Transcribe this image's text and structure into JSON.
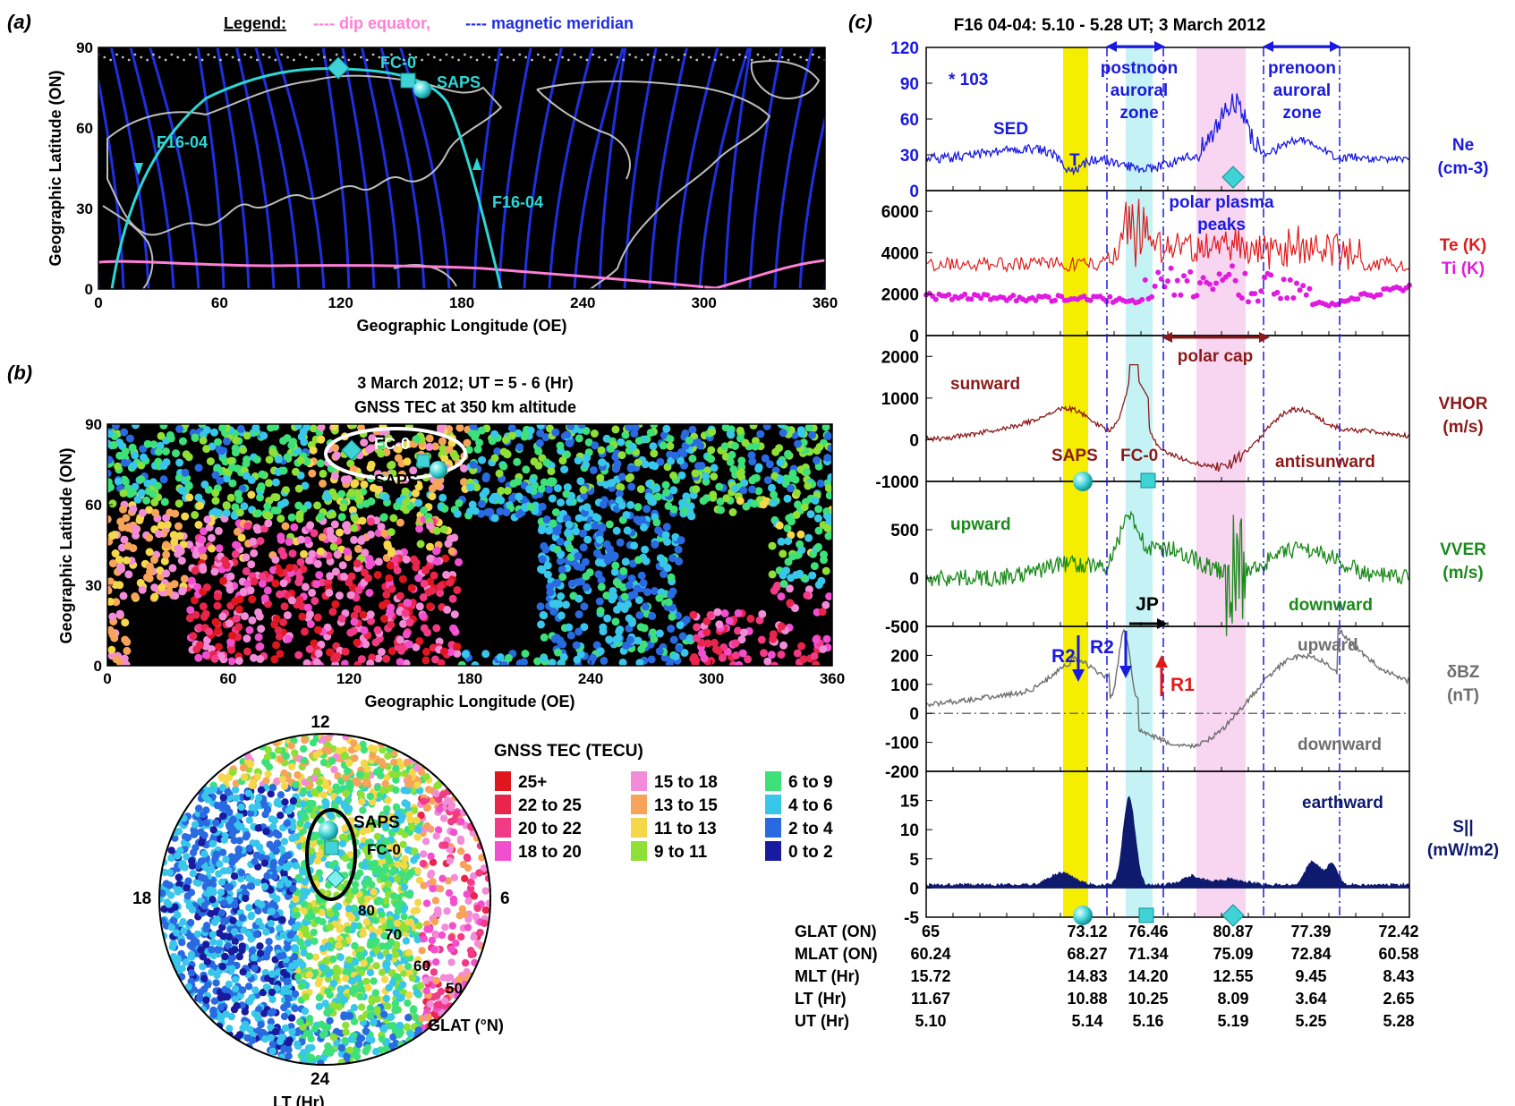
{
  "panel_a": {
    "letter": "(a)",
    "legend_title": "Legend:",
    "legend_dip": "---- dip equator,",
    "legend_meridian": "---- magnetic meridian",
    "xlabel": "Geographic Longitude (OE)",
    "ylabel": "Geographic Latitude (ON)",
    "xticks": [
      "0",
      "60",
      "120",
      "180",
      "240",
      "300",
      "360"
    ],
    "yticks": [
      "0",
      "30",
      "60",
      "90"
    ],
    "labels": {
      "fc0": "FC-0",
      "saps": "SAPS",
      "track1": "F16-04",
      "track2": "F16-04"
    },
    "colors": {
      "bg": "#000000",
      "meridian": "#1f2fe0",
      "dip": "#ff7fd6",
      "track": "#2fd6d6",
      "coast": "#bdbdbd"
    }
  },
  "panel_b": {
    "letter": "(b)",
    "title1": "3 March 2012; UT = 5 - 6 (Hr)",
    "title2": "GNSS TEC at 350 km altitude",
    "xlabel": "Geographic Longitude (OE)",
    "ylabel": "Geographic Latitude (ON)",
    "xticks": [
      "0",
      "60",
      "120",
      "180",
      "240",
      "300",
      "360"
    ],
    "yticks": [
      "0",
      "30",
      "60",
      "90"
    ],
    "labels": {
      "fc0": "FC-0",
      "saps": "SAPS"
    }
  },
  "polar": {
    "lt_top": "12",
    "lt_left": "18",
    "lt_right": "6",
    "lt_bottom": "24",
    "lt_label": "LT (Hr)",
    "glat_label": "GLAT (°N)",
    "rings": [
      "80",
      "70",
      "60",
      "50"
    ],
    "saps": "SAPS",
    "fc0": "FC-0"
  },
  "tec_legend": {
    "title": "GNSS TEC (TECU)",
    "col1": [
      {
        "label": "25+",
        "color": "#e0161e"
      },
      {
        "label": "22 to 25",
        "color": "#e8254a"
      },
      {
        "label": "20 to 22",
        "color": "#f23a86"
      },
      {
        "label": "18 to 20",
        "color": "#f24fd0"
      }
    ],
    "col2": [
      {
        "label": "15 to 18",
        "color": "#f28cd8"
      },
      {
        "label": "13 to 15",
        "color": "#f7a35a"
      },
      {
        "label": "11 to 13",
        "color": "#f5d84a"
      },
      {
        "label": "9 to 11",
        "color": "#8ee036"
      }
    ],
    "col3": [
      {
        "label": "6 to 9",
        "color": "#3ee07a"
      },
      {
        "label": "4 to 6",
        "color": "#38c6ea"
      },
      {
        "label": "2 to 4",
        "color": "#2a6ae0"
      },
      {
        "label": "0 to 2",
        "color": "#1a1a9e"
      }
    ]
  },
  "panel_c": {
    "letter": "(c)",
    "title": "F16 04-04: 5.10 - 5.28 UT; 3 March 2012",
    "zone1": "postnoon\nauroral\nzone",
    "zone2": "prenoon\nauroral\nzone",
    "polar_cap": "polar cap",
    "polar_peaks": "polar plasma\npeaks",
    "jp": "JP"
  },
  "chart_data": [
    {
      "type": "line",
      "name": "Ne",
      "ylabel": "Ne (cm-3)",
      "multiplier": "* 10^3",
      "yticks": [
        "0",
        "30",
        "60",
        "90",
        "120"
      ],
      "ylim": [
        0,
        120
      ],
      "annotations": [
        "SED",
        "T"
      ],
      "color": "#1a1ae0"
    },
    {
      "type": "line",
      "name": "Te/Ti",
      "ylabel": "Te (K) / Ti (K)",
      "yticks": [
        "0",
        "2000",
        "4000",
        "6000"
      ],
      "ylim": [
        0,
        7000
      ],
      "series": [
        {
          "name": "Te (K)",
          "color": "#e01a1a"
        },
        {
          "name": "Ti (K)",
          "color": "#e01ae0"
        }
      ]
    },
    {
      "type": "line",
      "name": "VHOR",
      "ylabel": "VHOR (m/s)",
      "yticks": [
        "-1000",
        "0",
        "1000",
        "2000"
      ],
      "ylim": [
        -1000,
        2500
      ],
      "annotations": [
        "sunward",
        "antisunward",
        "SAPS",
        "FC-0"
      ],
      "color": "#8b1a1a"
    },
    {
      "type": "line",
      "name": "VVER",
      "ylabel": "VVER (m/s)",
      "yticks": [
        "-500",
        "0",
        "500"
      ],
      "ylim": [
        -500,
        1000
      ],
      "annotations": [
        "upward",
        "downward"
      ],
      "color": "#1a8a1a"
    },
    {
      "type": "line",
      "name": "dBZ",
      "ylabel": "δBZ (nT)",
      "yticks": [
        "-200",
        "-100",
        "0",
        "100",
        "200"
      ],
      "ylim": [
        -200,
        300
      ],
      "annotations": [
        "R2",
        "R2",
        "R1",
        "upward",
        "downward"
      ],
      "color": "#6e6e6e"
    },
    {
      "type": "area",
      "name": "S||",
      "ylabel": "S|| (mW/m2)",
      "yticks": [
        "-5",
        "0",
        "5",
        "10",
        "15"
      ],
      "ylim": [
        -5,
        20
      ],
      "annotations": [
        "earthward"
      ],
      "color": "#0e1a6e"
    }
  ],
  "bottom_table": {
    "rows": [
      {
        "label": "GLAT (ON)",
        "values": [
          "65",
          "73.12",
          "76.46",
          "80.87",
          "77.39",
          "72.42"
        ]
      },
      {
        "label": "MLAT (ON)",
        "values": [
          "60.24",
          "68.27",
          "71.34",
          "75.09",
          "72.84",
          "60.58"
        ]
      },
      {
        "label": "MLT (Hr)",
        "values": [
          "15.72",
          "14.83",
          "14.20",
          "12.55",
          "9.45",
          "8.43"
        ]
      },
      {
        "label": "LT (Hr)",
        "values": [
          "11.67",
          "10.88",
          "10.25",
          "8.09",
          "3.64",
          "2.65"
        ]
      },
      {
        "label": "UT (Hr)",
        "values": [
          "5.10",
          "5.14",
          "5.16",
          "5.19",
          "5.25",
          "5.28"
        ]
      }
    ]
  }
}
